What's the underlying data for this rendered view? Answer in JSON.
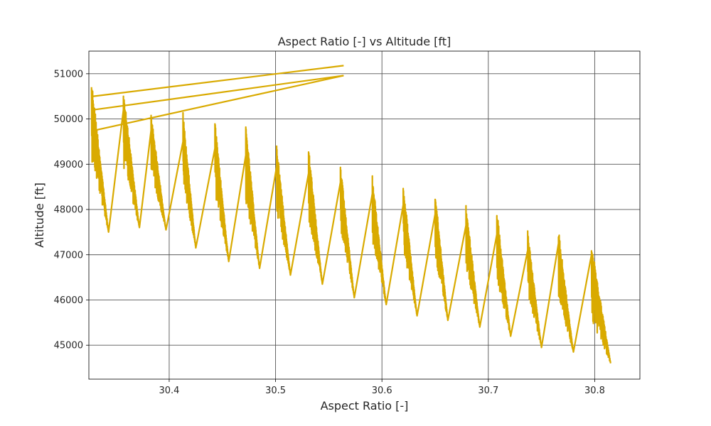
{
  "chart_data": {
    "type": "line",
    "title": "Aspect Ratio [-] vs Altitude [ft]",
    "xlabel": "Aspect Ratio [-]",
    "ylabel": "Altitude [ft]",
    "xlim": [
      30.3245,
      30.8425
    ],
    "ylim": [
      44250,
      51500
    ],
    "grid": true,
    "x_ticks": [
      30.4,
      30.5,
      30.6,
      30.7,
      30.8
    ],
    "x_tick_labels": [
      "30.4",
      "30.5",
      "30.6",
      "30.7",
      "30.8"
    ],
    "y_ticks": [
      45000,
      46000,
      47000,
      48000,
      49000,
      50000,
      51000
    ],
    "y_tick_labels": [
      "45000",
      "46000",
      "47000",
      "48000",
      "49000",
      "50000",
      "51000"
    ],
    "series": [
      {
        "color": "#d9aa00",
        "segments": [
          {
            "x0": 30.327,
            "y_top": 50880,
            "x1": 30.343,
            "y_bottom": 47500,
            "y_jump": 50500,
            "y_min_local": 49100
          },
          {
            "x0": 30.357,
            "y_top": 50680,
            "x1": 30.372,
            "y_bottom": 47600,
            "y_jump": 50200,
            "y_min_local": 48950
          },
          {
            "x0": 30.383,
            "y_top": 50140,
            "x1": 30.397,
            "y_bottom": 47550,
            "y_jump": 49750,
            "y_min_local": 48800
          },
          {
            "x0": 30.413,
            "y_top": 50150,
            "x1": 30.425,
            "y_bottom": 47150,
            "y_jump": 49500,
            "y_min_local": 48550
          },
          {
            "x0": 30.443,
            "y_top": 49960,
            "x1": 30.456,
            "y_bottom": 46850,
            "y_jump": 49350,
            "y_min_local": 48300
          },
          {
            "x0": 30.472,
            "y_top": 49900,
            "x1": 30.485,
            "y_bottom": 46700,
            "y_jump": 49200,
            "y_min_local": 48150
          },
          {
            "x0": 30.501,
            "y_top": 49450,
            "x1": 30.514,
            "y_bottom": 46550,
            "y_jump": 48950,
            "y_min_local": 47950
          },
          {
            "x0": 30.531,
            "y_top": 49400,
            "x1": 30.544,
            "y_bottom": 46350,
            "y_jump": 48800,
            "y_min_local": 47750
          },
          {
            "x0": 30.561,
            "y_top": 49000,
            "x1": 30.574,
            "y_bottom": 46050,
            "y_jump": 48600,
            "y_min_local": 47550
          },
          {
            "x0": 30.591,
            "y_top": 48750,
            "x1": 30.604,
            "y_bottom": 45900,
            "y_jump": 48350,
            "y_min_local": 47300
          },
          {
            "x0": 30.62,
            "y_top": 48600,
            "x1": 30.633,
            "y_bottom": 45650,
            "y_jump": 48100,
            "y_min_local": 47100
          },
          {
            "x0": 30.65,
            "y_top": 48400,
            "x1": 30.662,
            "y_bottom": 45550,
            "y_jump": 47900,
            "y_min_local": 46900
          },
          {
            "x0": 30.679,
            "y_top": 48150,
            "x1": 30.692,
            "y_bottom": 45400,
            "y_jump": 47650,
            "y_min_local": 46650
          },
          {
            "x0": 30.708,
            "y_top": 48000,
            "x1": 30.721,
            "y_bottom": 45200,
            "y_jump": 47450,
            "y_min_local": 46400
          },
          {
            "x0": 30.737,
            "y_top": 47550,
            "x1": 30.75,
            "y_bottom": 44950,
            "y_jump": 47100,
            "y_min_local": 46150
          },
          {
            "x0": 30.766,
            "y_top": 47550,
            "x1": 30.78,
            "y_bottom": 44850,
            "y_jump": 47250,
            "y_min_local": 46000
          },
          {
            "x0": 30.797,
            "y_top": 47250,
            "x1": 30.815,
            "y_bottom": 44600,
            "y_jump": 47000,
            "y_min_local": 45500
          }
        ],
        "return_lines": [
          {
            "from": [
              30.328,
              50500
            ],
            "to": [
              30.564,
              51180
            ]
          },
          {
            "from": [
              30.328,
              50200
            ],
            "to": [
              30.564,
              50960
            ]
          },
          {
            "from": [
              30.33,
              49750
            ],
            "to": [
              30.564,
              50960
            ]
          }
        ]
      }
    ]
  }
}
